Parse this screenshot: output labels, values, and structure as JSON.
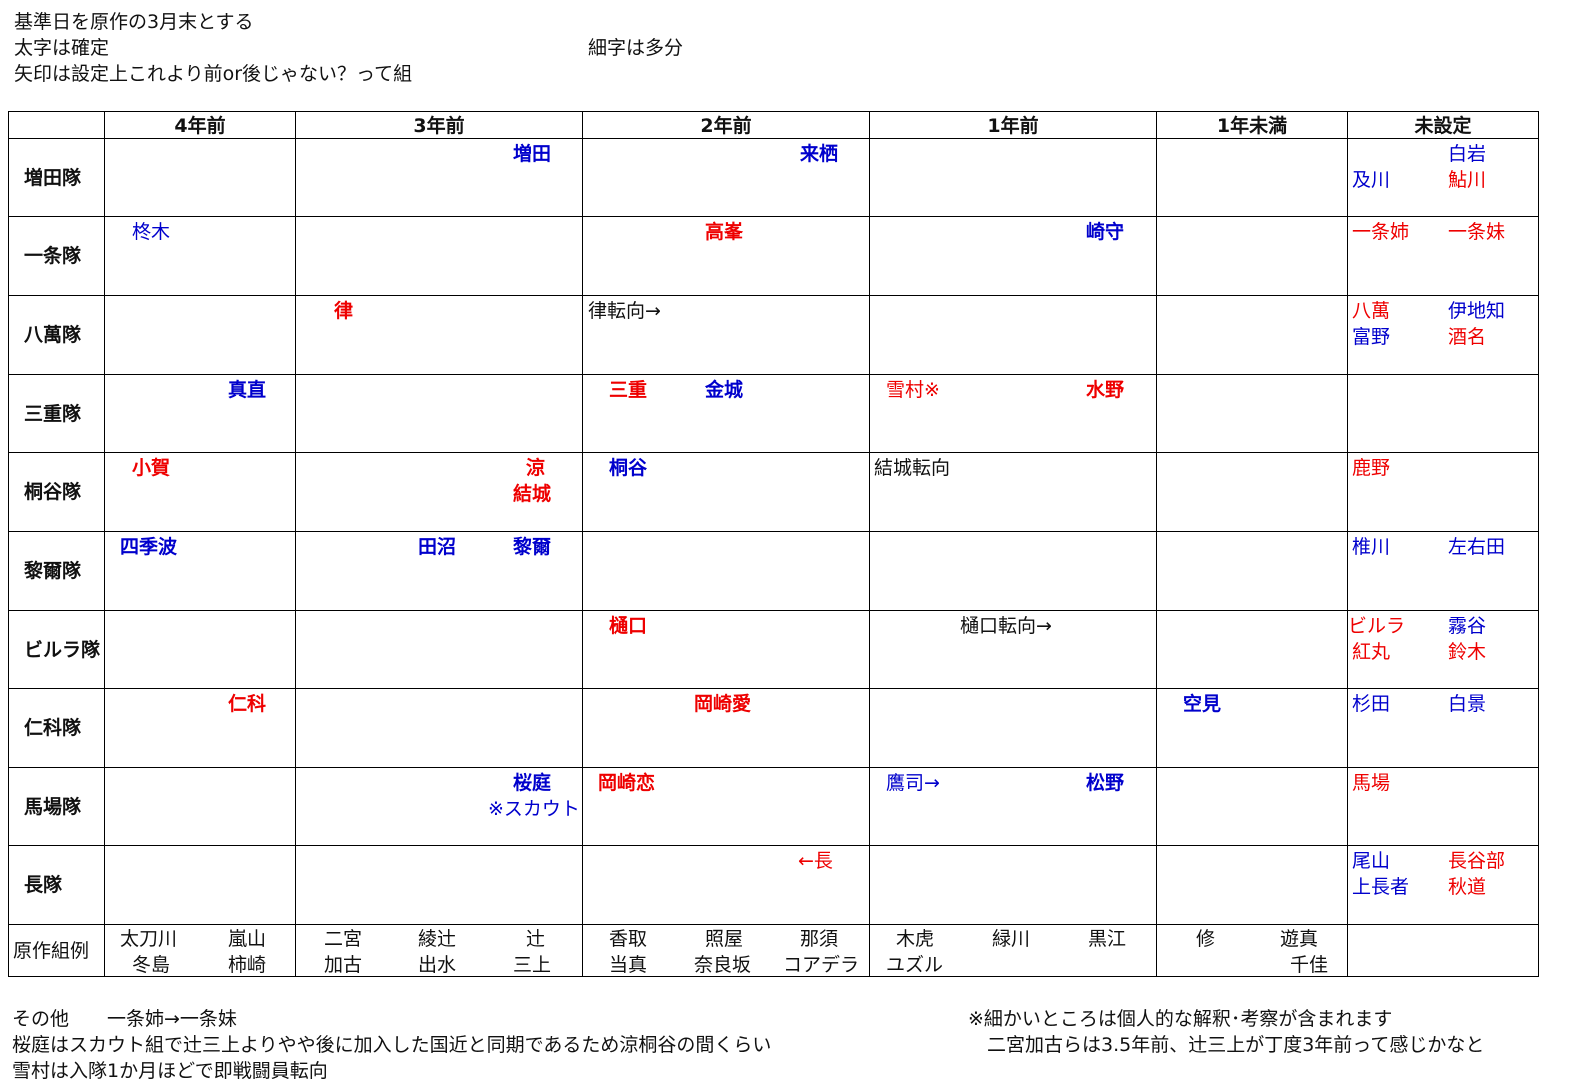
{
  "notes_top": {
    "line1": "基準日を原作の3月末とする",
    "line2": "太字は確定",
    "line2b": "細字は多分",
    "line3": "矢印は設定上これより前or後じゃない？って組"
  },
  "table": {
    "columns": [
      "4年前",
      "3年前",
      "2年前",
      "1年前",
      "1年未満",
      "未設定"
    ],
    "rows": [
      {
        "label": "増田隊",
        "entries": [
          "増田",
          "来栖",
          "白岩",
          "及川",
          "鮎川"
        ]
      },
      {
        "label": "一条隊",
        "entries": [
          "柊木",
          "高峯",
          "崎守",
          "一条姉",
          "一条妹"
        ]
      },
      {
        "label": "八萬隊",
        "entries": [
          "律",
          "律転向→",
          "八萬",
          "伊地知",
          "富野",
          "酒名"
        ]
      },
      {
        "label": "三重隊",
        "entries": [
          "真直",
          "三重",
          "金城",
          "雪村※",
          "水野"
        ]
      },
      {
        "label": "桐谷隊",
        "entries": [
          "小賀",
          "涼",
          "結城",
          "桐谷",
          "結城転向",
          "鹿野"
        ]
      },
      {
        "label": "黎爾隊",
        "entries": [
          "四季波",
          "田沼",
          "黎爾",
          "椎川",
          "左右田"
        ]
      },
      {
        "label": "ビルラ隊",
        "entries": [
          "樋口",
          "樋口転向→",
          "ビルラ",
          "霧谷",
          "紅丸",
          "鈴木"
        ]
      },
      {
        "label": "仁科隊",
        "entries": [
          "仁科",
          "岡崎愛",
          "空見",
          "杉田",
          "白景"
        ]
      },
      {
        "label": "馬場隊",
        "entries": [
          "桜庭",
          "※スカウト",
          "岡崎恋",
          "鷹司→",
          "松野",
          "馬場"
        ]
      },
      {
        "label": "長隊",
        "entries": [
          "←長",
          "尾山",
          "長谷部",
          "上長者",
          "秋道"
        ]
      }
    ],
    "examples": {
      "label": "原作組例",
      "entries": [
        "太刀川",
        "嵐山",
        "冬島",
        "柿崎",
        "二宮",
        "綾辻",
        "辻",
        "加古",
        "出水",
        "三上",
        "香取",
        "照屋",
        "那須",
        "当真",
        "奈良坂",
        "コアデラ",
        "木虎",
        "緑川",
        "黒江",
        "ユズル",
        "修",
        "遊真",
        "千佳"
      ]
    }
  },
  "notes_bottom": {
    "left1": "その他　　一条姉→一条妹",
    "left2": "桜庭はスカウト組で辻三上よりやや後に加入した国近と同期であるため涼桐谷の間くらい",
    "left3": "雪村は入隊1か月ほどで即戦闘員転向",
    "right1": "※細かいところは個人的な解釈･考察が含まれます",
    "right2": "　二宮加古らは3.5年前、辻三上が丁度3年前って感じかなと"
  },
  "colors": {
    "confirmed_red": "#ee0000",
    "blue": "#0000cc",
    "text": "#111111"
  }
}
